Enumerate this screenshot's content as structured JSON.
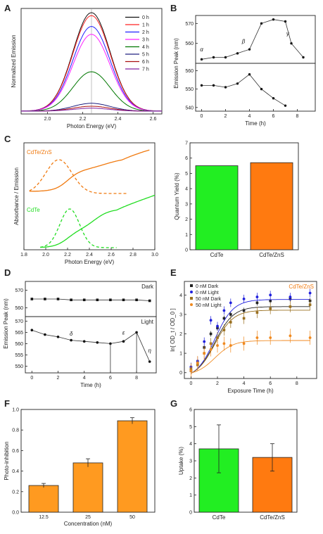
{
  "panels": {
    "A": {
      "label": "A"
    },
    "B": {
      "label": "B"
    },
    "C": {
      "label": "C"
    },
    "D": {
      "label": "D"
    },
    "E": {
      "label": "E"
    },
    "F": {
      "label": "F"
    },
    "G": {
      "label": "G"
    }
  },
  "chart_data": [
    {
      "id": "A",
      "type": "line",
      "xlabel": "Photon Energy (eV)",
      "ylabel": "Normalized Emission",
      "xlim": [
        1.85,
        2.65
      ],
      "xticks": [
        "2.0",
        "2.2",
        "2.4",
        "2.6"
      ],
      "center": 2.25,
      "sigma": 0.105,
      "legend_position": "top-right",
      "series": [
        {
          "name": "0 h",
          "color": "#111111",
          "amplitude": 1.0
        },
        {
          "name": "1 h",
          "color": "#ff2020",
          "amplitude": 0.97
        },
        {
          "name": "2 h",
          "color": "#2020ff",
          "amplitude": 0.86
        },
        {
          "name": "3 h",
          "color": "#ff20ff",
          "amplitude": 0.78
        },
        {
          "name": "4 h",
          "color": "#007700",
          "amplitude": 0.4
        },
        {
          "name": "5 h",
          "color": "#202080",
          "amplitude": 0.08
        },
        {
          "name": "6 h",
          "color": "#aa1010",
          "amplitude": 0.05
        },
        {
          "name": "7 h",
          "color": "#8020a0",
          "amplitude": 0.03
        }
      ]
    },
    {
      "id": "B",
      "type": "line",
      "xlabel": "Time (h)",
      "ylabel": "Emission Peak (nm)",
      "xlim": [
        -0.5,
        9.5
      ],
      "xticks": [
        "0",
        "2",
        "4",
        "6",
        "8"
      ],
      "top": {
        "ylim": [
          550,
          574
        ],
        "yticks": [
          "560",
          "570"
        ],
        "x": [
          0,
          1,
          2,
          3,
          4,
          5,
          6,
          7,
          7.5,
          8.5
        ],
        "y": [
          552,
          553,
          553,
          555,
          557,
          570,
          572,
          571,
          560,
          553
        ],
        "annotations": [
          {
            "text": "α",
            "x": 0,
            "y": 556
          },
          {
            "text": "β",
            "x": 3.5,
            "y": 560
          },
          {
            "text": "γ",
            "x": 7.2,
            "y": 564
          }
        ]
      },
      "bottom": {
        "ylim": [
          538,
          564
        ],
        "yticks": [
          "540",
          "550",
          "560"
        ],
        "x": [
          0,
          1,
          2,
          3,
          4,
          5,
          6,
          7
        ],
        "y": [
          552,
          552,
          551,
          553,
          558,
          550,
          545,
          541
        ]
      }
    },
    {
      "id": "C_left",
      "type": "line",
      "xlabel": "Photon Energy (eV)",
      "ylabel": "Absorbance / Emission",
      "xlim": [
        1.8,
        3.0
      ],
      "xticks": [
        "1.8",
        "2.0",
        "2.2",
        "2.4",
        "2.6",
        "2.8",
        "3.0"
      ],
      "series": [
        {
          "name": "CdTe/ZnS",
          "color": "#f07a10"
        },
        {
          "name": "CdTe",
          "color": "#22dd22"
        }
      ]
    },
    {
      "id": "C_right",
      "type": "bar",
      "categories": [
        "CdTe",
        "CdTe/ZnS"
      ],
      "values": [
        5.5,
        5.7
      ],
      "colors": [
        "#22ee22",
        "#ff7a10"
      ],
      "ylabel": "Quantum Yield (%)",
      "ylim": [
        0,
        7
      ],
      "yticks": [
        "0",
        "1",
        "2",
        "3",
        "4",
        "5",
        "6",
        "7"
      ]
    },
    {
      "id": "D",
      "type": "line",
      "xlabel": "Time (h)",
      "ylabel": "Emission Peak (nm)",
      "xlim": [
        -0.5,
        9.5
      ],
      "xticks": [
        "0",
        "2",
        "4",
        "6",
        "8"
      ],
      "top": {
        "label": "Dark",
        "ylim": [
          555,
          575
        ],
        "yticks": [
          "560",
          "570"
        ],
        "x": [
          0,
          1,
          2,
          3,
          4,
          5,
          6,
          7,
          8,
          9
        ],
        "y": [
          565,
          565,
          565,
          564.5,
          564.5,
          564.5,
          564.5,
          564.5,
          564.5,
          564
        ]
      },
      "bottom": {
        "label": "Light",
        "ylim": [
          547,
          572
        ],
        "yticks": [
          "550",
          "555",
          "560",
          "565",
          "570"
        ],
        "x": [
          0,
          1,
          2,
          3,
          4,
          5,
          6,
          7,
          8,
          9
        ],
        "y": [
          566,
          564,
          563,
          561.5,
          561,
          560.5,
          560,
          561,
          565,
          552
        ],
        "annotations": [
          {
            "text": "δ",
            "x": 3,
            "y": 563.5
          },
          {
            "text": "ε",
            "x": 7,
            "y": 564
          },
          {
            "text": "η",
            "x": 9,
            "y": 556
          }
        ]
      }
    },
    {
      "id": "E",
      "type": "scatter",
      "xlabel": "Exposure Time (h)",
      "ylabel": "ln[ OD_t / OD_0 ]",
      "xlim": [
        -0.5,
        9.5
      ],
      "ylim": [
        -0.3,
        4.7
      ],
      "xticks": [
        "0",
        "2",
        "4",
        "6",
        "8"
      ],
      "yticks": [
        "0",
        "1",
        "2",
        "3",
        "4"
      ],
      "title": "CdTe/ZnS",
      "x": [
        0,
        0.5,
        1,
        1.5,
        2,
        2.5,
        3,
        4,
        5,
        6,
        7.5,
        9
      ],
      "series": [
        {
          "name": "0 nM Dark",
          "color": "#222222",
          "y": [
            0.1,
            0.5,
            1.3,
            2.0,
            2.3,
            2.8,
            3.0,
            3.2,
            3.6,
            3.7,
            3.8,
            3.7
          ]
        },
        {
          "name": "0 nM Light",
          "color": "#2020dd",
          "y": [
            0.3,
            0.6,
            1.6,
            2.7,
            2.4,
            3.2,
            3.6,
            3.8,
            3.9,
            4.0,
            3.9,
            4.1
          ]
        },
        {
          "name": "50 nM Dark",
          "color": "#9a7020",
          "y": [
            0.2,
            0.4,
            1.0,
            1.5,
            1.8,
            2.2,
            2.6,
            2.8,
            3.1,
            3.3,
            3.4,
            3.5
          ]
        },
        {
          "name": "50 nM Light",
          "color": "#f08a20",
          "y": [
            0.1,
            0.5,
            1.0,
            1.2,
            1.4,
            1.5,
            1.4,
            1.5,
            1.8,
            1.8,
            1.9,
            1.8
          ]
        }
      ]
    },
    {
      "id": "F",
      "type": "bar",
      "categories": [
        "12.5",
        "25",
        "50"
      ],
      "values": [
        0.26,
        0.48,
        0.89
      ],
      "errors": [
        0.02,
        0.04,
        0.03
      ],
      "color": "#ff9a20",
      "xlabel": "Concentration (nM)",
      "ylabel": "Photo-inhibition",
      "ylim": [
        0,
        1.0
      ],
      "yticks": [
        "0.0",
        "0.2",
        "0.4",
        "0.6",
        "0.8",
        "1.0"
      ]
    },
    {
      "id": "G",
      "type": "bar",
      "categories": [
        "CdTe",
        "CdTe/ZnS"
      ],
      "values": [
        3.7,
        3.2
      ],
      "errors": [
        1.4,
        0.8
      ],
      "colors": [
        "#22ee22",
        "#ff7a10"
      ],
      "ylabel": "Uptake (%)",
      "ylim": [
        0,
        6
      ],
      "yticks": [
        "0",
        "1",
        "2",
        "3",
        "4",
        "5",
        "6"
      ]
    }
  ]
}
